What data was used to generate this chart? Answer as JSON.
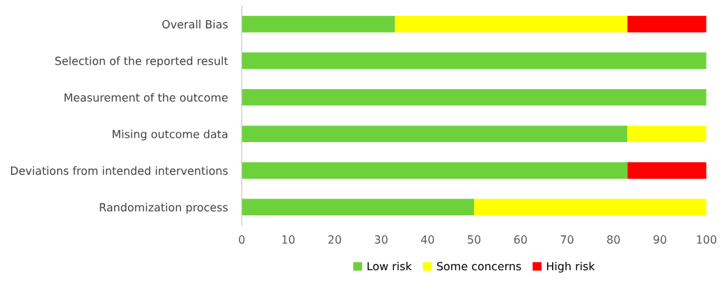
{
  "chart_data": {
    "type": "bar",
    "orientation": "horizontal",
    "stacked": true,
    "categories": [
      "Overall Bias",
      "Selection of the reported result",
      "Measurement of the outcome",
      "Mising outcome data",
      "Deviations from intended interventions",
      "Randomization process"
    ],
    "series": [
      {
        "name": "Low risk",
        "color": "#6dd13c",
        "values": [
          33,
          100,
          100,
          83,
          83,
          50
        ]
      },
      {
        "name": "Some concerns",
        "color": "#ffff00",
        "values": [
          50,
          0,
          0,
          17,
          0,
          50
        ]
      },
      {
        "name": "High risk",
        "color": "#ff0000",
        "values": [
          17,
          0,
          0,
          0,
          17,
          0
        ]
      }
    ],
    "xlim": [
      0,
      100
    ],
    "xticks": [
      0,
      10,
      20,
      30,
      40,
      50,
      60,
      70,
      80,
      90,
      100
    ],
    "grid": false,
    "legend": "bottom"
  }
}
